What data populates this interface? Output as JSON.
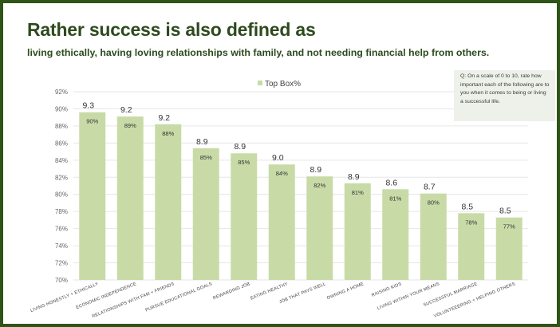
{
  "title": "Rather success is  also defined as",
  "subtitle": "living ethically, having loving relationships with family, and not needing financial help from others.",
  "question": "Q:  On a scale of 0 to 10, rate how important each of the following are to you when it comes to being or living a successful life.",
  "chart_data": {
    "type": "bar",
    "title": "",
    "xlabel": "",
    "ylabel": "",
    "ylim": [
      70,
      92
    ],
    "yticks": [
      "70%",
      "72%",
      "74%",
      "76%",
      "78%",
      "80%",
      "82%",
      "84%",
      "86%",
      "88%",
      "90%",
      "92%"
    ],
    "grid": true,
    "legend": {
      "position": "top-center",
      "entries": [
        "Top Box%"
      ]
    },
    "categories": [
      "LIVING HONESTLY + ETHICALLY",
      "ECONOMIC INDEPENDENCE",
      "RELATIONSHIPS WITH FAM + FRIENDS",
      "PURSUE EDUCATIONAL GOALS",
      "REWARDING JOB",
      "EATING HEALTHY",
      "JOB THAT PAYS WELL",
      "OWNING A HOME",
      "RAISING KIDS",
      "LIVING WITHIN YOUR MEANS",
      "SUCCESSFUL MARRIAGE",
      "VOLUNTEEERING + HELPING OTHERS"
    ],
    "series": [
      {
        "name": "Top Box%",
        "color": "#c8dba7",
        "values": [
          89.6,
          89.1,
          88.2,
          85.4,
          84.8,
          83.5,
          82.1,
          81.3,
          80.6,
          80.1,
          77.8,
          77.3
        ],
        "value_labels": [
          "90%",
          "89%",
          "88%",
          "85%",
          "85%",
          "84%",
          "82%",
          "81%",
          "81%",
          "80%",
          "78%",
          "77%"
        ]
      }
    ],
    "mean_scores": [
      "9.3",
      "9.2",
      "9.2",
      "8.9",
      "8.9",
      "9.0",
      "8.9",
      "8.9",
      "8.6",
      "8.7",
      "8.5",
      "8.5"
    ]
  },
  "colors": {
    "accent": "#2d4a1e",
    "border": "#2f5417",
    "bar": "#c8dba7",
    "gridline": "#e6e6e6",
    "question_box": "#eef1e9"
  }
}
